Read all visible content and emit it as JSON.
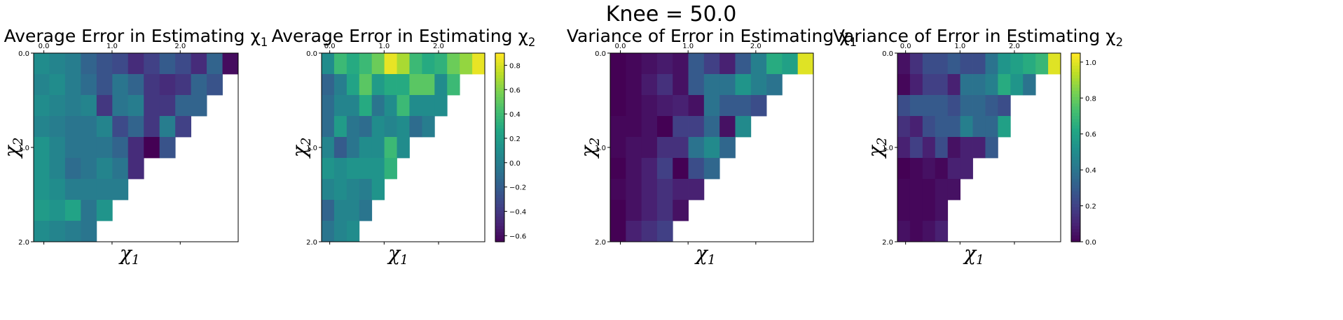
{
  "suptitle": "Knee = 50.0",
  "chart_data": [
    {
      "type": "heatmap",
      "title": "Average Error in Estimating χ₁",
      "xlabel": "χ₁",
      "ylabel": "χ₂",
      "x_tick_labels": [
        "0.0",
        "1.0",
        "2.0"
      ],
      "x_tick_values": [
        0.0,
        1.0,
        2.0
      ],
      "y_tick_labels": [
        "0.0",
        "1.0",
        "2.0"
      ],
      "y_tick_values": [
        0.0,
        1.0,
        2.0
      ],
      "xlim": [
        -0.15,
        2.85
      ],
      "ylim": [
        0.0,
        2.0
      ],
      "colormap": "viridis",
      "clim": [
        -0.65,
        0.9
      ],
      "colorbar": false,
      "rows": [
        [
          0.1,
          0.05,
          0.0,
          -0.15,
          -0.25,
          -0.3,
          -0.45,
          -0.35,
          -0.2,
          -0.3,
          -0.45,
          -0.15,
          -0.6
        ],
        [
          0.05,
          0.1,
          0.0,
          -0.1,
          -0.25,
          -0.05,
          -0.15,
          -0.4,
          -0.45,
          -0.4,
          -0.15,
          -0.25
        ],
        [
          0.1,
          0.05,
          0.0,
          0.05,
          -0.4,
          -0.05,
          0.0,
          -0.4,
          -0.4,
          -0.15,
          -0.15
        ],
        [
          0.05,
          0.0,
          -0.05,
          -0.05,
          0.05,
          -0.3,
          -0.15,
          -0.4,
          0.0,
          -0.35
        ],
        [
          0.15,
          0.05,
          -0.05,
          -0.05,
          -0.05,
          -0.15,
          -0.45,
          -0.65,
          -0.25
        ],
        [
          0.15,
          0.05,
          -0.1,
          -0.05,
          0.05,
          -0.05,
          -0.45
        ],
        [
          0.15,
          0.1,
          0.0,
          0.0,
          0.0,
          0.0
        ],
        [
          0.2,
          0.15,
          0.25,
          -0.05,
          0.15
        ],
        [
          0.1,
          0.05,
          0.0,
          -0.05
        ]
      ]
    },
    {
      "type": "heatmap",
      "title": "Average Error in Estimating χ₂",
      "xlabel": "χ₁",
      "ylabel": "χ₂",
      "x_tick_labels": [
        "0.0",
        "1.0",
        "2.0"
      ],
      "x_tick_values": [
        0.0,
        1.0,
        2.0
      ],
      "y_tick_labels": [
        "0.0",
        "1.0",
        "2.0"
      ],
      "y_tick_values": [
        0.0,
        1.0,
        2.0
      ],
      "xlim": [
        -0.15,
        2.85
      ],
      "ylim": [
        0.0,
        2.0
      ],
      "colormap": "viridis",
      "clim": [
        -0.65,
        0.9
      ],
      "colorbar": true,
      "colorbar_ticks": [
        0.8,
        0.6,
        0.4,
        0.2,
        0.0,
        -0.2,
        -0.4,
        -0.6
      ],
      "colorbar_tick_labels": [
        "0.8",
        "0.6",
        "0.4",
        "0.2",
        "0.0",
        "−0.2",
        "−0.4",
        "−0.6"
      ],
      "rows": [
        [
          0.1,
          0.4,
          0.3,
          0.4,
          0.55,
          0.85,
          0.7,
          0.4,
          0.3,
          0.35,
          0.55,
          0.65,
          0.85
        ],
        [
          -0.15,
          0.0,
          0.25,
          0.5,
          0.2,
          0.3,
          0.3,
          0.5,
          0.5,
          0.1,
          0.4
        ],
        [
          -0.1,
          0.05,
          0.05,
          0.3,
          -0.05,
          0.1,
          0.4,
          0.1,
          0.1,
          0.1
        ],
        [
          -0.1,
          0.2,
          -0.05,
          -0.1,
          0.1,
          0.05,
          0.1,
          -0.1,
          0.0
        ],
        [
          0.05,
          -0.2,
          -0.05,
          0.1,
          0.1,
          0.4,
          0.1
        ],
        [
          0.15,
          0.1,
          0.15,
          0.15,
          0.15,
          0.35
        ],
        [
          0.05,
          0.1,
          0.05,
          0.0,
          0.15
        ],
        [
          -0.15,
          0.05,
          0.05,
          -0.05
        ],
        [
          -0.05,
          0.05,
          0.1
        ]
      ]
    },
    {
      "type": "heatmap",
      "title": "Variance of Error in Estimating χ₁",
      "xlabel": "χ₁",
      "ylabel": "χ₂",
      "x_tick_labels": [
        "0.0",
        "1.0",
        "2.0"
      ],
      "x_tick_values": [
        0.0,
        1.0,
        2.0
      ],
      "y_tick_labels": [
        "0.0",
        "1.0",
        "2.0"
      ],
      "y_tick_values": [
        0.0,
        1.0,
        2.0
      ],
      "xlim": [
        -0.15,
        2.85
      ],
      "ylim": [
        0.0,
        2.0
      ],
      "colormap": "viridis",
      "clim": [
        0.0,
        1.05
      ],
      "colorbar": false,
      "rows": [
        [
          0.0,
          0.02,
          0.05,
          0.08,
          0.05,
          0.3,
          0.2,
          0.1,
          0.3,
          0.45,
          0.65,
          0.6,
          1.0
        ],
        [
          0.0,
          0.02,
          0.08,
          0.15,
          0.05,
          0.3,
          0.4,
          0.4,
          0.55,
          0.45,
          0.4
        ],
        [
          0.0,
          0.02,
          0.05,
          0.08,
          0.1,
          0.05,
          0.4,
          0.3,
          0.3,
          0.25
        ],
        [
          0.02,
          0.02,
          0.05,
          0.0,
          0.2,
          0.2,
          0.35,
          0.05,
          0.5
        ],
        [
          0.02,
          0.05,
          0.05,
          0.15,
          0.15,
          0.4,
          0.5,
          0.35
        ],
        [
          0.0,
          0.05,
          0.1,
          0.2,
          0.0,
          0.25,
          0.35
        ],
        [
          0.02,
          0.05,
          0.1,
          0.15,
          0.1,
          0.1
        ],
        [
          0.0,
          0.05,
          0.1,
          0.15,
          0.05
        ],
        [
          0.0,
          0.1,
          0.15,
          0.2
        ]
      ]
    },
    {
      "type": "heatmap",
      "title": "Variance of Error in Estimating χ₂",
      "xlabel": "χ₁",
      "ylabel": "χ₂",
      "x_tick_labels": [
        "0.0",
        "1.0",
        "2.0"
      ],
      "x_tick_values": [
        0.0,
        1.0,
        2.0
      ],
      "y_tick_labels": [
        "0.0",
        "1.0",
        "2.0"
      ],
      "y_tick_values": [
        0.0,
        1.0,
        2.0
      ],
      "xlim": [
        -0.15,
        2.85
      ],
      "ylim": [
        0.0,
        2.0
      ],
      "colormap": "viridis",
      "clim": [
        0.0,
        1.05
      ],
      "colorbar": true,
      "colorbar_ticks": [
        1.0,
        0.8,
        0.6,
        0.4,
        0.2,
        0.0
      ],
      "colorbar_tick_labels": [
        "1.0",
        "0.8",
        "0.6",
        "0.4",
        "0.2",
        "0.0"
      ],
      "rows": [
        [
          0.05,
          0.15,
          0.25,
          0.25,
          0.3,
          0.25,
          0.25,
          0.4,
          0.55,
          0.6,
          0.65,
          0.7,
          1.0
        ],
        [
          0.02,
          0.1,
          0.2,
          0.2,
          0.1,
          0.4,
          0.4,
          0.45,
          0.65,
          0.55,
          0.4
        ],
        [
          0.25,
          0.3,
          0.3,
          0.3,
          0.25,
          0.35,
          0.35,
          0.3,
          0.25
        ],
        [
          0.15,
          0.1,
          0.25,
          0.3,
          0.3,
          0.45,
          0.35,
          0.35,
          0.6
        ],
        [
          0.1,
          0.2,
          0.1,
          0.25,
          0.05,
          0.1,
          0.1,
          0.3
        ],
        [
          0.0,
          0.02,
          0.05,
          0.02,
          0.1,
          0.1
        ],
        [
          0.02,
          0.02,
          0.02,
          0.05,
          0.05
        ],
        [
          0.02,
          0.02,
          0.02,
          0.05
        ],
        [
          0.05,
          0.02,
          0.05,
          0.1
        ]
      ]
    }
  ]
}
